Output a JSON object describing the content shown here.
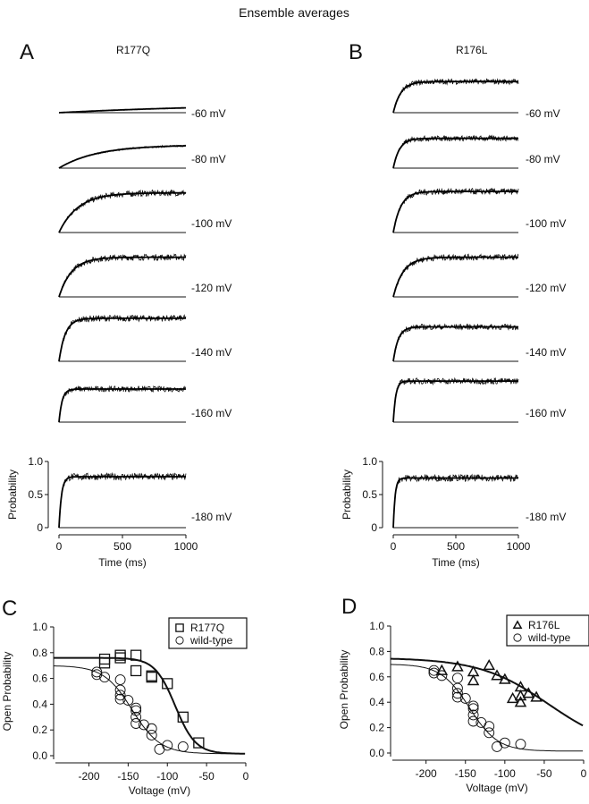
{
  "title": "Ensemble averages",
  "colors": {
    "ink": "#111111",
    "background": "#ffffff"
  },
  "chart_data": [
    {
      "panel": "A",
      "type": "line",
      "construct": "R177Q",
      "xlabel": "Time (ms)",
      "ylabel": "Probability",
      "xticks": [
        "0",
        "500",
        "1000"
      ],
      "yticks": [
        "0",
        "0.5",
        "1.0"
      ],
      "xlim": [
        0,
        1000
      ],
      "ylim": [
        0,
        1
      ],
      "traces": [
        {
          "label": "-60 mV",
          "plateau": 0.15,
          "tau_ms": 1500
        },
        {
          "label": "-80 mV",
          "plateau": 0.35,
          "tau_ms": 300
        },
        {
          "label": "-100 mV",
          "plateau": 0.6,
          "tau_ms": 150
        },
        {
          "label": "-120 mV",
          "plateau": 0.6,
          "tau_ms": 100
        },
        {
          "label": "-140 mV",
          "plateau": 0.65,
          "tau_ms": 50
        },
        {
          "label": "-160 mV",
          "plateau": 0.5,
          "tau_ms": 25
        },
        {
          "label": "-180 mV",
          "plateau": 0.77,
          "tau_ms": 20
        }
      ]
    },
    {
      "panel": "B",
      "type": "line",
      "construct": "R176L",
      "xlabel": "Time (ms)",
      "ylabel": "Probability",
      "xticks": [
        "0",
        "500",
        "1000"
      ],
      "yticks": [
        "0",
        "0.5",
        "1.0"
      ],
      "xlim": [
        0,
        1000
      ],
      "ylim": [
        0,
        1
      ],
      "traces": [
        {
          "label": "-60 mV",
          "plateau": 0.47,
          "tau_ms": 60
        },
        {
          "label": "-80 mV",
          "plateau": 0.45,
          "tau_ms": 50
        },
        {
          "label": "-100 mV",
          "plateau": 0.62,
          "tau_ms": 60
        },
        {
          "label": "-120 mV",
          "plateau": 0.6,
          "tau_ms": 80
        },
        {
          "label": "-140 mV",
          "plateau": 0.52,
          "tau_ms": 40
        },
        {
          "label": "-160 mV",
          "plateau": 0.62,
          "tau_ms": 20
        },
        {
          "label": "-180 mV",
          "plateau": 0.75,
          "tau_ms": 15
        }
      ]
    },
    {
      "panel": "C",
      "type": "scatter",
      "xlabel": "Voltage (mV)",
      "ylabel": "Open Probability",
      "xticks": [
        "-200",
        "-150",
        "-100",
        "-50",
        "0"
      ],
      "yticks": [
        "0.0",
        "0.2",
        "0.4",
        "0.6",
        "0.8",
        "1.0"
      ],
      "xlim": [
        -245,
        0
      ],
      "ylim": [
        0,
        1
      ],
      "legend": "top-right",
      "series": [
        {
          "name": "R177Q",
          "marker": "square",
          "x": [
            -180,
            -180,
            -160,
            -160,
            -140,
            -140,
            -120,
            -120,
            -100,
            -80,
            -60
          ],
          "y": [
            0.75,
            0.72,
            0.78,
            0.76,
            0.78,
            0.66,
            0.62,
            0.61,
            0.56,
            0.3,
            0.1
          ],
          "fit": {
            "pmax": 0.76,
            "v_half": -90,
            "slope": 13
          }
        },
        {
          "name": "wild-type",
          "marker": "circle",
          "x": [
            -190,
            -190,
            -180,
            -160,
            -160,
            -160,
            -160,
            -150,
            -140,
            -140,
            -140,
            -140,
            -130,
            -120,
            -120,
            -110,
            -100,
            -80
          ],
          "y": [
            0.65,
            0.63,
            0.61,
            0.59,
            0.51,
            0.47,
            0.44,
            0.43,
            0.37,
            0.35,
            0.3,
            0.25,
            0.24,
            0.21,
            0.16,
            0.05,
            0.08,
            0.07
          ],
          "fit": {
            "pmax": 0.7,
            "v_half": -145,
            "slope": 18
          }
        }
      ]
    },
    {
      "panel": "D",
      "type": "scatter",
      "xlabel": "Voltage (mV)",
      "ylabel": "Open Probability",
      "xticks": [
        "-200",
        "-150",
        "-100",
        "-50",
        "0"
      ],
      "yticks": [
        "0.0",
        "0.2",
        "0.4",
        "0.6",
        "0.8",
        "1.0"
      ],
      "xlim": [
        -245,
        0
      ],
      "ylim": [
        0,
        1
      ],
      "legend": "top-right",
      "series": [
        {
          "name": "R176L",
          "marker": "triangle",
          "x": [
            -180,
            -160,
            -140,
            -140,
            -120,
            -110,
            -100,
            -90,
            -80,
            -80,
            -80,
            -70,
            -60
          ],
          "y": [
            0.65,
            0.68,
            0.64,
            0.57,
            0.69,
            0.61,
            0.58,
            0.43,
            0.52,
            0.45,
            0.4,
            0.47,
            0.44
          ],
          "fit": {
            "pmax": 0.75,
            "v_half": -44,
            "slope": 44
          }
        },
        {
          "name": "wild-type",
          "marker": "circle",
          "x": [
            -190,
            -190,
            -180,
            -160,
            -160,
            -160,
            -160,
            -150,
            -140,
            -140,
            -140,
            -140,
            -130,
            -120,
            -120,
            -110,
            -100,
            -80
          ],
          "y": [
            0.65,
            0.63,
            0.61,
            0.59,
            0.51,
            0.47,
            0.44,
            0.43,
            0.37,
            0.35,
            0.3,
            0.25,
            0.24,
            0.21,
            0.16,
            0.05,
            0.08,
            0.07
          ],
          "fit": {
            "pmax": 0.7,
            "v_half": -145,
            "slope": 18
          }
        }
      ]
    }
  ]
}
